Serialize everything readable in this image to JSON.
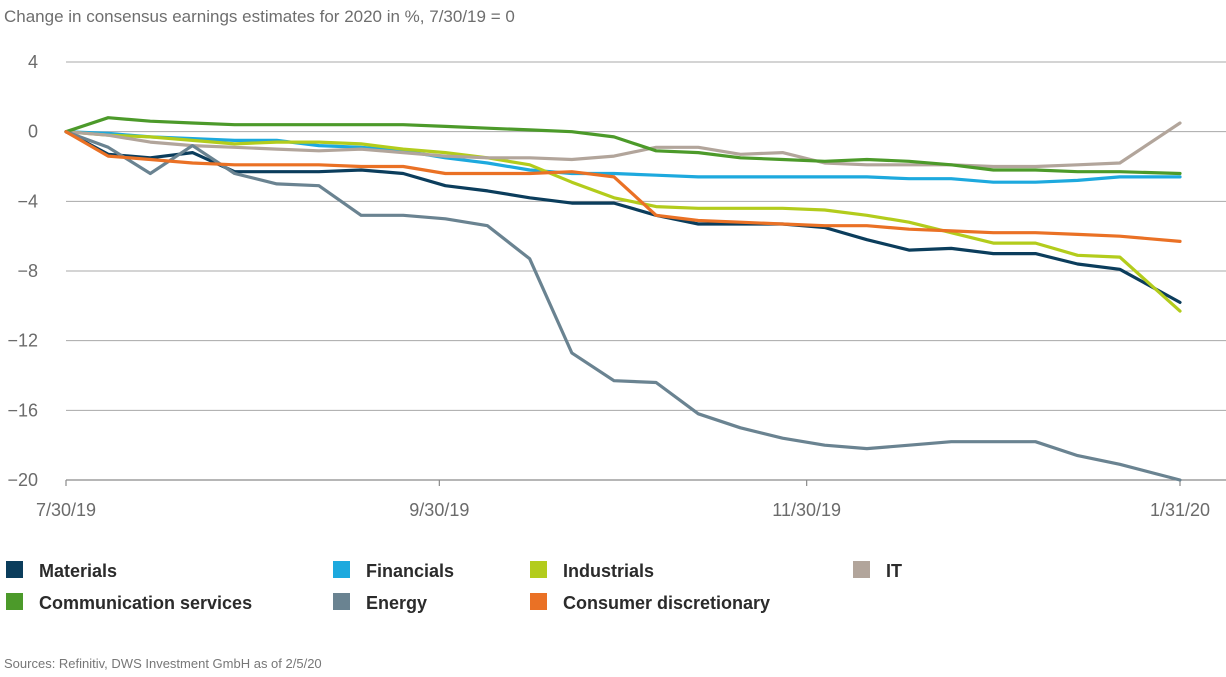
{
  "chart_data": {
    "type": "line",
    "title": "Change in consensus earnings estimates for 2020 in %, 7/30/19 = 0",
    "x_tick_labels": [
      "7/30/19",
      "9/30/19",
      "11/30/19",
      "1/31/20"
    ],
    "x_ticks_day": [
      0,
      62,
      123,
      185
    ],
    "y_ticks": [
      4,
      0,
      -4,
      -8,
      -12,
      -16,
      -20
    ],
    "y_tick_labels": [
      "4",
      "0",
      "−4",
      "−8",
      "−12",
      "−16",
      "−20"
    ],
    "ylim": [
      -20,
      4
    ],
    "xlim_day": [
      0,
      185
    ],
    "grid": true,
    "legend_position": "bottom",
    "x": [
      0,
      7,
      14,
      21,
      28,
      35,
      42,
      49,
      56,
      63,
      70,
      77,
      84,
      91,
      98,
      105,
      112,
      119,
      126,
      133,
      140,
      147,
      154,
      161,
      168,
      175,
      185
    ],
    "series": [
      {
        "name": "Materials",
        "color": "#0b3d5c",
        "values": [
          0,
          -1.3,
          -1.5,
          -1.2,
          -2.3,
          -2.3,
          -2.3,
          -2.2,
          -2.4,
          -3.1,
          -3.4,
          -3.8,
          -4.1,
          -4.1,
          -4.8,
          -5.3,
          -5.3,
          -5.3,
          -5.5,
          -6.2,
          -6.8,
          -6.7,
          -7.0,
          -7.0,
          -7.6,
          -7.9,
          -9.8
        ]
      },
      {
        "name": "Financials",
        "color": "#1da9de",
        "values": [
          0,
          -0.1,
          -0.3,
          -0.4,
          -0.5,
          -0.5,
          -0.8,
          -0.9,
          -1.1,
          -1.5,
          -1.8,
          -2.2,
          -2.4,
          -2.4,
          -2.5,
          -2.6,
          -2.6,
          -2.6,
          -2.6,
          -2.6,
          -2.7,
          -2.7,
          -2.9,
          -2.9,
          -2.8,
          -2.6,
          -2.6
        ]
      },
      {
        "name": "Industrials",
        "color": "#b3cc1c",
        "values": [
          0,
          -0.2,
          -0.3,
          -0.5,
          -0.7,
          -0.6,
          -0.6,
          -0.7,
          -1.0,
          -1.2,
          -1.5,
          -1.9,
          -2.9,
          -3.8,
          -4.3,
          -4.4,
          -4.4,
          -4.4,
          -4.5,
          -4.8,
          -5.2,
          -5.8,
          -6.4,
          -6.4,
          -7.1,
          -7.2,
          -10.3
        ]
      },
      {
        "name": "IT",
        "color": "#b2a59b",
        "values": [
          0,
          -0.2,
          -0.6,
          -0.8,
          -0.9,
          -1.0,
          -1.1,
          -1.0,
          -1.2,
          -1.4,
          -1.5,
          -1.5,
          -1.6,
          -1.4,
          -0.9,
          -0.9,
          -1.3,
          -1.2,
          -1.8,
          -1.9,
          -1.9,
          -1.9,
          -2.0,
          -2.0,
          -1.9,
          -1.8,
          0.5
        ]
      },
      {
        "name": "Communication services",
        "color": "#4c9a2a",
        "values": [
          0,
          0.8,
          0.6,
          0.5,
          0.4,
          0.4,
          0.4,
          0.4,
          0.4,
          0.3,
          0.2,
          0.1,
          0.0,
          -0.3,
          -1.1,
          -1.2,
          -1.5,
          -1.6,
          -1.7,
          -1.6,
          -1.7,
          -1.9,
          -2.2,
          -2.2,
          -2.3,
          -2.3,
          -2.4
        ]
      },
      {
        "name": "Energy",
        "color": "#6a8391",
        "values": [
          0,
          -0.9,
          -2.4,
          -0.8,
          -2.4,
          -3.0,
          -3.1,
          -4.8,
          -4.8,
          -5.0,
          -5.4,
          -7.3,
          -12.7,
          -14.3,
          -14.4,
          -16.2,
          -17.0,
          -17.6,
          -18.0,
          -18.2,
          -18.0,
          -17.8,
          -17.8,
          -17.8,
          -18.6,
          -19.1,
          -20.0
        ]
      },
      {
        "name": "Consumer discretionary",
        "color": "#ea7125",
        "values": [
          0,
          -1.4,
          -1.6,
          -1.8,
          -1.9,
          -1.9,
          -1.9,
          -2.0,
          -2.0,
          -2.4,
          -2.4,
          -2.4,
          -2.3,
          -2.6,
          -4.8,
          -5.1,
          -5.2,
          -5.3,
          -5.4,
          -5.4,
          -5.6,
          -5.7,
          -5.8,
          -5.8,
          -5.9,
          -6.0,
          -6.3
        ]
      }
    ]
  },
  "source": "Sources: Refinitiv, DWS Investment GmbH as of 2/5/20"
}
